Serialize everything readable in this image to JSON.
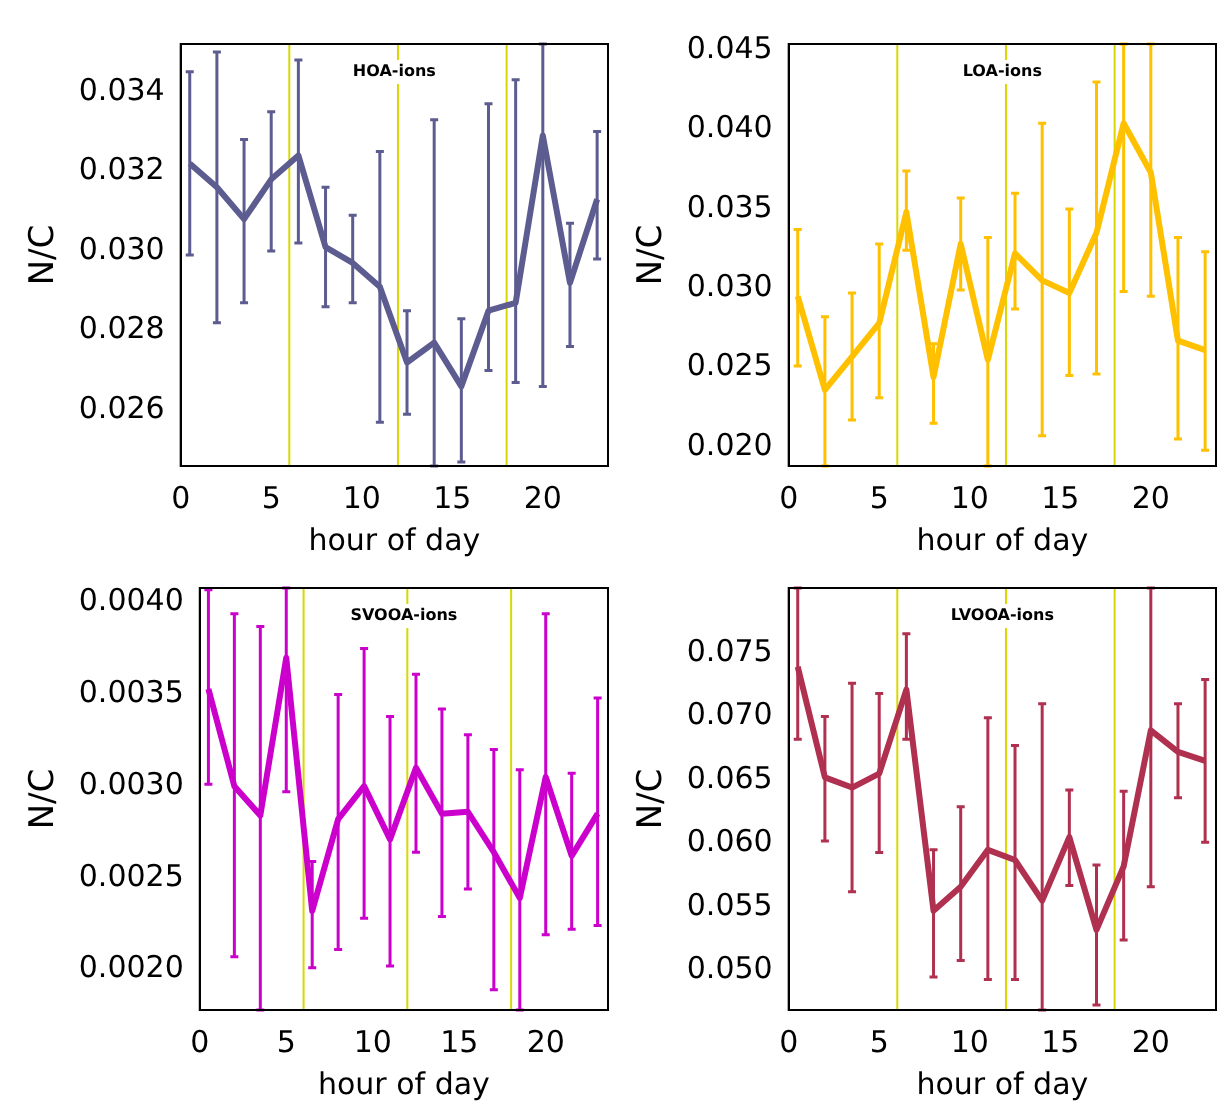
{
  "chart_data": [
    {
      "type": "line",
      "title": "HOA-ions",
      "xlabel": "hour of day",
      "ylabel": "N/C",
      "marker": "none",
      "x": [
        0.5,
        2,
        3.5,
        5,
        6.5,
        8,
        9.5,
        11,
        12.5,
        14,
        15.5,
        17,
        18.5,
        20,
        21.5,
        23
      ],
      "xlim": [
        0,
        23.6
      ],
      "xticks": [
        0,
        5,
        10,
        15,
        20
      ],
      "ylim": [
        0.0246,
        0.0352
      ],
      "yticks": [
        0.026,
        0.028,
        {
          "value": 0.03,
          "label": "0.030"
        },
        0.032,
        0.034
      ],
      "series": [
        {
          "color": "#5c5c90",
          "values": [
            0.0322,
            0.0316,
            0.0308,
            0.0318,
            0.0324,
            0.0301,
            0.0297,
            0.0291,
            0.0272,
            0.0277,
            0.0266,
            0.0285,
            0.0287,
            0.0329,
            0.0292,
            0.0313
          ],
          "errors": [
            [
              0.0299,
              0.0345
            ],
            [
              0.0282,
              0.035
            ],
            [
              0.0287,
              0.0328
            ],
            [
              0.03,
              0.0335
            ],
            [
              0.0302,
              0.0348
            ],
            [
              0.0286,
              0.0316
            ],
            [
              0.0287,
              0.0309
            ],
            [
              0.0257,
              0.0325
            ],
            [
              0.0259,
              0.0285
            ],
            [
              0.0246,
              0.0333
            ],
            [
              0.0247,
              0.0283
            ],
            [
              0.027,
              0.0337
            ],
            [
              0.0267,
              0.0343
            ],
            [
              0.0266,
              0.0352
            ],
            [
              0.0276,
              0.0307
            ],
            [
              0.0298,
              0.033
            ]
          ]
        }
      ],
      "ref_lines": [
        {
          "axis": "x",
          "value": 6,
          "color": "#d8d800"
        },
        {
          "axis": "x",
          "value": 12,
          "color": "#d8d800"
        },
        {
          "axis": "x",
          "value": 18,
          "color": "#d8d800"
        }
      ]
    },
    {
      "type": "line",
      "title": "LOA-ions",
      "xlabel": "hour of day",
      "ylabel": "N/C",
      "marker": "none",
      "x": [
        0.5,
        2,
        3.5,
        5,
        6.5,
        8,
        9.5,
        11,
        12.5,
        14,
        15.5,
        17,
        18.5,
        20,
        21.5,
        23
      ],
      "xlim": [
        0,
        23.6
      ],
      "xticks": [
        0,
        5,
        10,
        15,
        20
      ],
      "ylim": [
        0.0188,
        0.0454
      ],
      "yticks": [
        {
          "value": 0.02,
          "label": "0.020"
        },
        0.025,
        {
          "value": 0.03,
          "label": "0.030"
        },
        0.035,
        {
          "value": 0.04,
          "label": "0.040"
        },
        0.045
      ],
      "series": [
        {
          "color": "#ffc000",
          "values": [
            0.0295,
            0.0236,
            0.0257,
            0.0278,
            0.0348,
            0.0244,
            0.0328,
            0.0255,
            0.0322,
            0.0305,
            0.0297,
            0.0335,
            0.0404,
            0.0373,
            0.0267,
            0.0261
          ],
          "errors": [
            [
              0.0251,
              0.0337
            ],
            [
              0.0188,
              0.0282
            ],
            [
              0.0217,
              0.0297
            ],
            [
              0.0231,
              0.0328
            ],
            [
              0.0324,
              0.0374
            ],
            [
              0.0215,
              0.0265
            ],
            [
              0.0299,
              0.0357
            ],
            [
              0.0188,
              0.0332
            ],
            [
              0.0287,
              0.036
            ],
            [
              0.0207,
              0.0404
            ],
            [
              0.0245,
              0.035
            ],
            [
              0.0246,
              0.043
            ],
            [
              0.0298,
              0.0454
            ],
            [
              0.0295,
              0.0454
            ],
            [
              0.0205,
              0.0332
            ],
            [
              0.0198,
              0.0323
            ]
          ]
        }
      ],
      "ref_lines": [
        {
          "axis": "x",
          "value": 6,
          "color": "#d8d800"
        },
        {
          "axis": "x",
          "value": 12,
          "color": "#d8d800"
        },
        {
          "axis": "x",
          "value": 18,
          "color": "#d8d800"
        }
      ]
    },
    {
      "type": "line",
      "title": "SVOOA-ions",
      "xlabel": "hour of day",
      "ylabel": "N/C",
      "marker": "none",
      "x": [
        0.5,
        2,
        3.5,
        5,
        6.5,
        8,
        9.5,
        11,
        12.5,
        14,
        15.5,
        17,
        18.5,
        20,
        21.5,
        23
      ],
      "xlim": [
        0,
        23.6
      ],
      "xticks": [
        0,
        5,
        10,
        15,
        20
      ],
      "ylim": [
        0.00178,
        0.00408
      ],
      "yticks": [
        {
          "value": 0.002,
          "label": "0.0020"
        },
        0.0025,
        {
          "value": 0.003,
          "label": "0.0030"
        },
        0.0035,
        {
          "value": 0.004,
          "label": "0.0040"
        }
      ],
      "series": [
        {
          "color": "#cc00cc",
          "values": [
            0.00353,
            0.003,
            0.00284,
            0.0037,
            0.00232,
            0.00282,
            0.003,
            0.00271,
            0.0031,
            0.00285,
            0.00286,
            0.00264,
            0.00239,
            0.00305,
            0.00262,
            0.00285
          ],
          "errors": [
            [
              0.00301,
              0.00407
            ],
            [
              0.00207,
              0.00394
            ],
            [
              0.00178,
              0.00387
            ],
            [
              0.00297,
              0.00408
            ],
            [
              0.00201,
              0.00259
            ],
            [
              0.00211,
              0.0035
            ],
            [
              0.00228,
              0.00375
            ],
            [
              0.00202,
              0.00338
            ],
            [
              0.00264,
              0.00361
            ],
            [
              0.00229,
              0.00342
            ],
            [
              0.00244,
              0.00328
            ],
            [
              0.00189,
              0.0032
            ],
            [
              0.00178,
              0.00309
            ],
            [
              0.00219,
              0.00394
            ],
            [
              0.00222,
              0.00307
            ],
            [
              0.00224,
              0.00348
            ]
          ]
        }
      ],
      "ref_lines": [
        {
          "axis": "x",
          "value": 6,
          "color": "#d8d800"
        },
        {
          "axis": "x",
          "value": 12,
          "color": "#d8d800"
        },
        {
          "axis": "x",
          "value": 18,
          "color": "#d8d800"
        }
      ]
    },
    {
      "type": "line",
      "title": "LVOOA-ions",
      "xlabel": "hour of day",
      "ylabel": "N/C",
      "marker": "none",
      "x": [
        0.5,
        2,
        3.5,
        5,
        6.5,
        8,
        9.5,
        11,
        12.5,
        14,
        15.5,
        17,
        18.5,
        20,
        21.5,
        23
      ],
      "xlim": [
        0,
        23.6
      ],
      "xticks": [
        0,
        5,
        10,
        15,
        20
      ],
      "ylim": [
        0.0469,
        0.0801
      ],
      "yticks": [
        {
          "value": 0.05,
          "label": "0.050"
        },
        0.055,
        {
          "value": 0.06,
          "label": "0.060"
        },
        0.065,
        {
          "value": 0.07,
          "label": "0.070"
        },
        0.075
      ],
      "series": [
        {
          "color": "#b03050",
          "values": [
            0.0739,
            0.0652,
            0.0644,
            0.0655,
            0.0721,
            0.0547,
            0.0566,
            0.0595,
            0.0587,
            0.0555,
            0.0605,
            0.0532,
            0.0582,
            0.0689,
            0.0672,
            0.0665
          ],
          "errors": [
            [
              0.0682,
              0.0801
            ],
            [
              0.0602,
              0.07
            ],
            [
              0.0562,
              0.0726
            ],
            [
              0.0593,
              0.0718
            ],
            [
              0.0682,
              0.0765
            ],
            [
              0.0495,
              0.0595
            ],
            [
              0.0508,
              0.0629
            ],
            [
              0.0493,
              0.0699
            ],
            [
              0.0493,
              0.0677
            ],
            [
              0.0469,
              0.071
            ],
            [
              0.0567,
              0.0642
            ],
            [
              0.0473,
              0.0583
            ],
            [
              0.0524,
              0.0641
            ],
            [
              0.0566,
              0.0801
            ],
            [
              0.0636,
              0.071
            ],
            [
              0.0601,
              0.0729
            ]
          ]
        }
      ],
      "ref_lines": [
        {
          "axis": "x",
          "value": 6,
          "color": "#d8d800"
        },
        {
          "axis": "x",
          "value": 12,
          "color": "#d8d800"
        },
        {
          "axis": "x",
          "value": 18,
          "color": "#d8d800"
        }
      ]
    }
  ]
}
